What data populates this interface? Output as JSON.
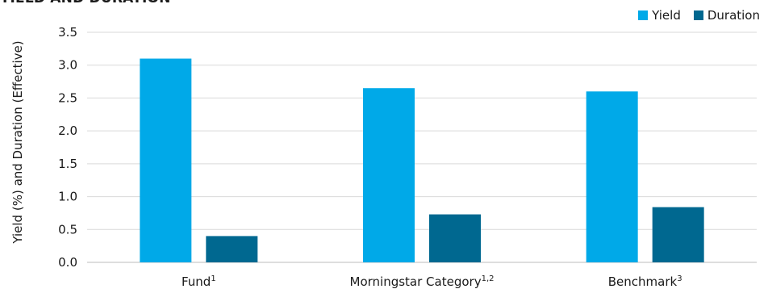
{
  "chart_data": {
    "type": "bar",
    "title": "YIELD AND DURATION",
    "ylabel": "Yield (%) and Duration (Effective)",
    "xlabel": "",
    "ylim": [
      0,
      3.5
    ],
    "yticks": [
      "0.0",
      "0.5",
      "1.0",
      "1.5",
      "2.0",
      "2.5",
      "3.0",
      "3.5"
    ],
    "categories": [
      "Fund",
      "Morningstar Category",
      "Benchmark"
    ],
    "category_superscripts": [
      "1",
      "1,2",
      "3"
    ],
    "series": [
      {
        "name": "Yield",
        "color": "#00a9e8",
        "values": [
          3.1,
          2.65,
          2.6
        ]
      },
      {
        "name": "Duration",
        "color": "#006890",
        "values": [
          0.4,
          0.73,
          0.84
        ]
      }
    ],
    "grid": true,
    "legend_position": "top-right"
  }
}
